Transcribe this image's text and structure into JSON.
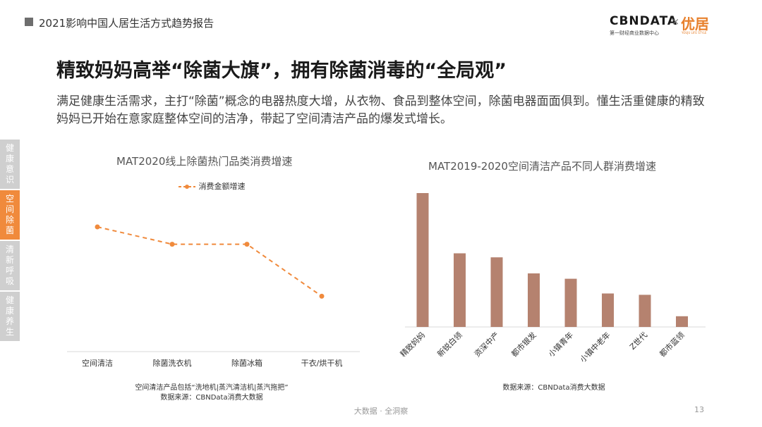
{
  "header": {
    "report_title": "2021影响中国人居生活方式趋势报告",
    "logo_cbn": "CBNDATA",
    "logo_cbn_sub": "第一财经商业数据中心",
    "logo_x": "×",
    "logo_yj": "优居",
    "logo_yj_sub": "YOUJU LIFE STYLE"
  },
  "headline": "精致妈妈高举“除菌大旗”，拥有除菌消毒的“全局观”",
  "intro": "满足健康生活需求，主打“除菌”概念的电器热度大增，从衣物、食品到整体空间，除菌电器面面俱到。懂生活重健康的精致妈妈已开始在意家庭整体空间的洁净，带起了空间清洁产品的爆发式增长。",
  "side_tabs": [
    {
      "label": "健康意识",
      "active": false
    },
    {
      "label": "空间除菌",
      "active": true
    },
    {
      "label": "清新呼吸",
      "active": false
    },
    {
      "label": "健康养生",
      "active": false
    }
  ],
  "chart_data": [
    {
      "type": "line",
      "title": "MAT2020线上除菌热门品类消费增速",
      "categories": [
        "空间清洁",
        "除菌洗衣机",
        "除菌冰箱",
        "干衣/烘干机"
      ],
      "series": [
        {
          "name": "消费金额增速",
          "values": [
            100,
            85,
            85,
            40
          ],
          "color": "#f08a3c",
          "style": "dashed"
        }
      ],
      "ylim": [
        0,
        150
      ],
      "grid": false,
      "legend": "top",
      "notes": [
        "空间清洁产品包括“洗地机|蒸汽清洁机|蒸汽拖把”",
        "数据来源：CBNData消费大数据"
      ]
    },
    {
      "type": "bar",
      "title": "MAT2019-2020空间清洁产品不同人群消费增速",
      "categories": [
        "精致妈妈",
        "新锐白领",
        "资深中产",
        "都市银发",
        "小镇青年",
        "小镇中老年",
        "Z世代",
        "都市蓝领"
      ],
      "values": [
        100,
        55,
        52,
        40,
        36,
        25,
        24,
        8
      ],
      "ylim": [
        0,
        100
      ],
      "grid": false,
      "color": "#b5826f",
      "notes": [
        "数据来源：CBNData消费大数据"
      ]
    }
  ],
  "footer": {
    "text": "大数据 · 全洞察",
    "page_number": "13"
  }
}
